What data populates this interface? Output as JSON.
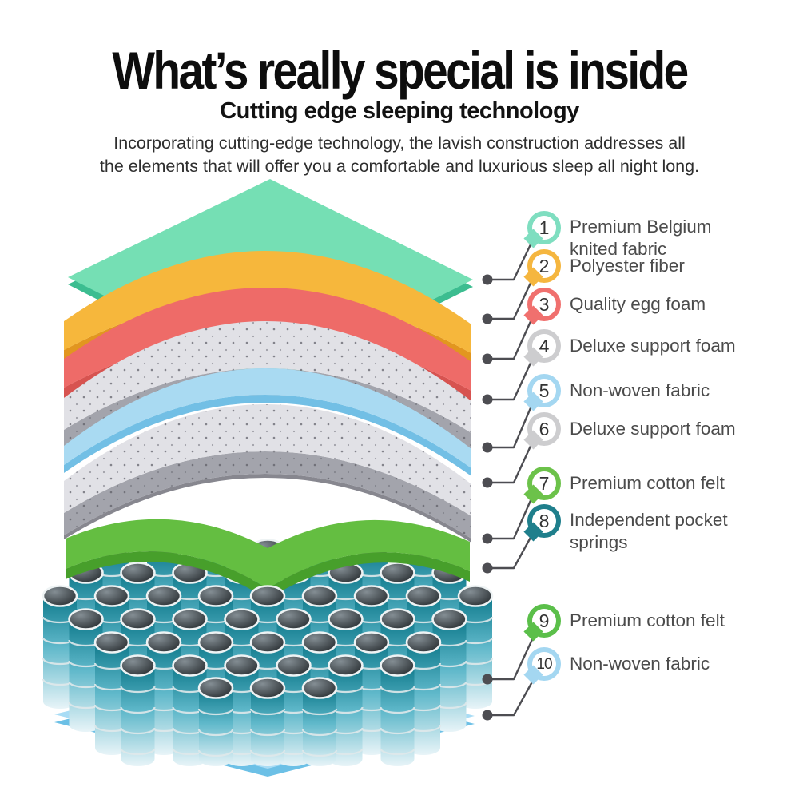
{
  "page": {
    "background": "#ffffff"
  },
  "header": {
    "title": "What’s really special is inside",
    "subtitle": "Cutting edge sleeping technology",
    "description": "Incorporating cutting-edge technology, the lavish construction addresses all\nthe elements that will offer you a comfortable and luxurious sleep all night long."
  },
  "callouts": [
    {
      "num": "1",
      "label": "Premium Belgium knited fabric",
      "color": "#7FDEC0"
    },
    {
      "num": "2",
      "label": "Polyester fiber",
      "color": "#F5B63F"
    },
    {
      "num": "3",
      "label": "Quality egg foam",
      "color": "#F0706E"
    },
    {
      "num": "4",
      "label": "Deluxe support foam",
      "color": "#CDCDCF"
    },
    {
      "num": "5",
      "label": "Non-woven fabric",
      "color": "#A4D7F1"
    },
    {
      "num": "6",
      "label": "Deluxe support foam",
      "color": "#CDCDCF"
    },
    {
      "num": "7",
      "label": "Premium cotton felt",
      "color": "#6CC24A"
    },
    {
      "num": "8",
      "label": "Independent pocket springs",
      "color": "#1F7F8C"
    },
    {
      "num": "9",
      "label": "Premium cotton felt",
      "color": "#5BBF4A"
    },
    {
      "num": "10",
      "label": "Non-woven fabric",
      "color": "#A4D7F1"
    }
  ],
  "diagram": {
    "leader_color": "#4d4d52",
    "layers": [
      {
        "name": "premium belgium knited fabric",
        "color": "#75DFB4"
      },
      {
        "name": "polyester fiber",
        "color": "#F6B73C"
      },
      {
        "name": "quality egg foam",
        "color": "#EE6B68"
      },
      {
        "name": "deluxe support foam",
        "color": "#E1E1E6"
      },
      {
        "name": "non-woven fabric",
        "color": "#A9DAF2"
      },
      {
        "name": "deluxe support foam",
        "color": "#E1E1E6"
      },
      {
        "name": "premium cotton felt",
        "color": "#64BE41"
      },
      {
        "name": "independent pocket springs",
        "color": "#0F7A8C"
      },
      {
        "name": "premium cotton felt",
        "color": "#64BE41"
      },
      {
        "name": "non-woven fabric",
        "color": "#A8DCF5"
      }
    ]
  }
}
